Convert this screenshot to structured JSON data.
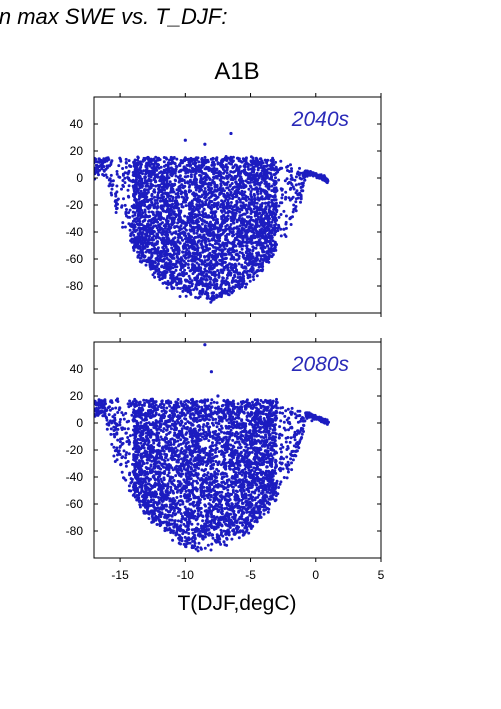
{
  "figure": {
    "title_fragment": "in max SWE vs. T_DJF:",
    "scenario_label": "A1B",
    "xlabel": "T(DJF,degC)"
  },
  "chart_data": [
    {
      "type": "scatter",
      "panel_label": "2040s",
      "xlabel": "T(DJF,degC)",
      "ylabel": "",
      "xlim": [
        -17,
        5
      ],
      "ylim": [
        -100,
        60
      ],
      "xticks": [
        -15,
        -10,
        -5,
        0,
        5
      ],
      "yticks": [
        40,
        20,
        0,
        -20,
        -40,
        -60,
        -80
      ],
      "show_x_tick_labels": false,
      "marker_color": "#1c1cc0",
      "label_color": "#2a2ab8",
      "point_cloud": {
        "x_range": [
          -17,
          1
        ],
        "y_range": [
          -90,
          15
        ],
        "dense_region": {
          "x": [
            -14,
            -3
          ],
          "y": [
            -80,
            12
          ]
        },
        "outliers": [
          [
            -6.5,
            33
          ],
          [
            -10,
            28
          ],
          [
            -8.5,
            25
          ]
        ]
      }
    },
    {
      "type": "scatter",
      "panel_label": "2080s",
      "xlabel": "T(DJF,degC)",
      "ylabel": "",
      "xlim": [
        -17,
        5
      ],
      "ylim": [
        -100,
        60
      ],
      "xticks": [
        -15,
        -10,
        -5,
        0,
        5
      ],
      "yticks": [
        40,
        20,
        0,
        -20,
        -40,
        -60,
        -80
      ],
      "show_x_tick_labels": true,
      "marker_color": "#1c1cc0",
      "label_color": "#2a2ab8",
      "point_cloud": {
        "x_range": [
          -17,
          1
        ],
        "y_range": [
          -93,
          17
        ],
        "dense_region": {
          "x": [
            -14,
            -3
          ],
          "y": [
            -88,
            14
          ]
        },
        "outliers": [
          [
            -8.5,
            58
          ],
          [
            -8,
            38
          ],
          [
            -7.5,
            20
          ]
        ]
      }
    }
  ]
}
